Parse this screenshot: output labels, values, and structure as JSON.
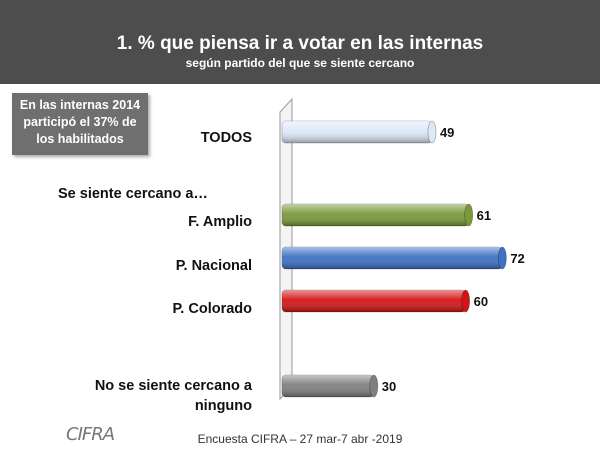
{
  "title": "1.  % que piensa ir a votar en las internas",
  "subtitle": "según partido del que se siente cercano",
  "note_lines": [
    "En las internas 2014",
    "participó el 37% de",
    "los habilitados"
  ],
  "section_label": "Se siente cercano a…",
  "footer": "Encuesta CIFRA – 27 mar-7 abr -2019",
  "logo": "CIFRA",
  "chart_data": {
    "type": "bar",
    "orientation": "horizontal",
    "title": "1.  % que piensa ir a votar en las internas",
    "subtitle": "según partido del que se siente cercano",
    "categories": [
      "TODOS",
      "F. Amplio",
      "P. Nacional",
      "P. Colorado",
      "No se siente cercano a ninguno"
    ],
    "values": [
      49,
      61,
      72,
      60,
      30
    ],
    "colors": [
      "#dce9f8",
      "#7a9a3a",
      "#3d72c4",
      "#d41414",
      "#7f7f7f"
    ],
    "xlim": [
      0,
      80
    ],
    "grid": false,
    "legend": "none"
  }
}
